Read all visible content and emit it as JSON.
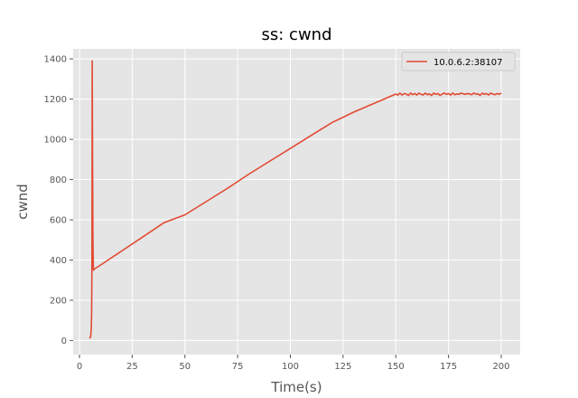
{
  "chart_data": {
    "type": "line",
    "title": "ss: cwnd",
    "xlabel": "Time(s)",
    "ylabel": "cwnd",
    "xlim": [
      -3,
      209
    ],
    "ylim": [
      -70,
      1450
    ],
    "xticks": [
      0,
      25,
      50,
      75,
      100,
      125,
      150,
      175,
      200
    ],
    "yticks": [
      0,
      200,
      400,
      600,
      800,
      1000,
      1200,
      1400
    ],
    "grid": true,
    "legend_position": "top-right",
    "colors": {
      "plot_bg": "#e5e5e5",
      "grid": "#ffffff",
      "series": "#e24a33"
    },
    "series": [
      {
        "name": "10.0.6.2:38107",
        "x": [
          4.8,
          5.3,
          5.6,
          5.8,
          5.9,
          6.0,
          6.05,
          6.2,
          6.4,
          6.6,
          6.8,
          7.0,
          10,
          20,
          30,
          40,
          50,
          60,
          70,
          80,
          90,
          100,
          110,
          120,
          125,
          130,
          140,
          150,
          151,
          152,
          153,
          154,
          155,
          156,
          157,
          158,
          159,
          160,
          161,
          162,
          163,
          164,
          165,
          166,
          167,
          168,
          169,
          170,
          171,
          172,
          173,
          174,
          175,
          176,
          177,
          178,
          179,
          180,
          181,
          182,
          183,
          184,
          185,
          186,
          187,
          188,
          189,
          190,
          191,
          192,
          193,
          194,
          195,
          196,
          197,
          198,
          199,
          200
        ],
        "y": [
          10,
          20,
          60,
          150,
          400,
          900,
          1390,
          900,
          500,
          350,
          352,
          355,
          375,
          445,
          515,
          585,
          625,
          690,
          755,
          825,
          890,
          955,
          1020,
          1085,
          1110,
          1135,
          1180,
          1225,
          1220,
          1230,
          1220,
          1228,
          1225,
          1218,
          1230,
          1222,
          1228,
          1220,
          1230,
          1224,
          1220,
          1230,
          1222,
          1226,
          1218,
          1230,
          1224,
          1228,
          1218,
          1225,
          1230,
          1224,
          1228,
          1220,
          1230,
          1222,
          1226,
          1224,
          1230,
          1226,
          1224,
          1228,
          1226,
          1222,
          1230,
          1225,
          1226,
          1218,
          1230,
          1224,
          1228,
          1220,
          1230,
          1225,
          1222,
          1228,
          1224,
          1230
        ]
      }
    ]
  }
}
